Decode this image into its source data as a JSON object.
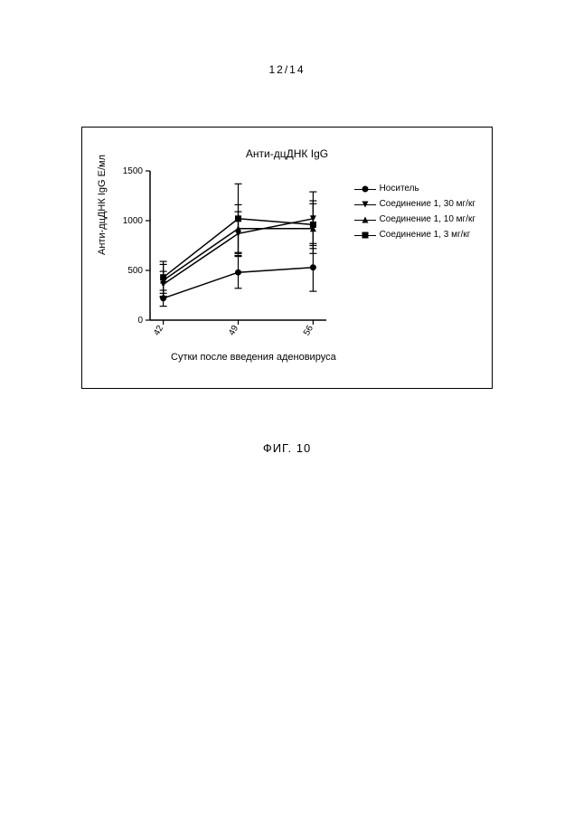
{
  "page_indicator": "12/14",
  "figure_label": "ФИГ. 10",
  "chart": {
    "type": "line",
    "title": "Анти-дцДНК IgG",
    "y_axis": {
      "label": "Анти-дцДНК IgG Е/мл",
      "min": 0,
      "max": 1500,
      "ticks": [
        0,
        500,
        1000,
        1500
      ]
    },
    "x_axis": {
      "label": "Сутки после введения аденовируса",
      "ticks": [
        42,
        49,
        56
      ]
    },
    "series": [
      {
        "name": "Носитель",
        "marker": "circle",
        "color": "#000000",
        "data": [
          {
            "x": 42,
            "y": 220,
            "err": 80
          },
          {
            "x": 49,
            "y": 480,
            "err": 160
          },
          {
            "x": 56,
            "y": 530,
            "err": 240
          }
        ]
      },
      {
        "name": "Соединение 1, 30 мг/кг",
        "marker": "triangle-down",
        "color": "#000000",
        "data": [
          {
            "x": 42,
            "y": 360,
            "err": 130
          },
          {
            "x": 49,
            "y": 870,
            "err": 220
          },
          {
            "x": 56,
            "y": 1020,
            "err": 270
          }
        ]
      },
      {
        "name": "Соединение 1, 10 мг/кг",
        "marker": "triangle-up",
        "color": "#000000",
        "data": [
          {
            "x": 42,
            "y": 400,
            "err": 160
          },
          {
            "x": 49,
            "y": 920,
            "err": 240
          },
          {
            "x": 56,
            "y": 920,
            "err": 250
          }
        ]
      },
      {
        "name": "Соединение 1,  3 мг/кг",
        "marker": "square",
        "color": "#000000",
        "data": [
          {
            "x": 42,
            "y": 430,
            "err": 160
          },
          {
            "x": 49,
            "y": 1020,
            "err": 350
          },
          {
            "x": 56,
            "y": 960,
            "err": 240
          }
        ]
      }
    ],
    "frame_color": "#000000",
    "background_color": "#ffffff",
    "line_width": 1.5,
    "marker_size": 7,
    "text_color": "#000000",
    "label_fontsize": 11,
    "tick_fontsize": 10,
    "title_fontsize": 12
  }
}
